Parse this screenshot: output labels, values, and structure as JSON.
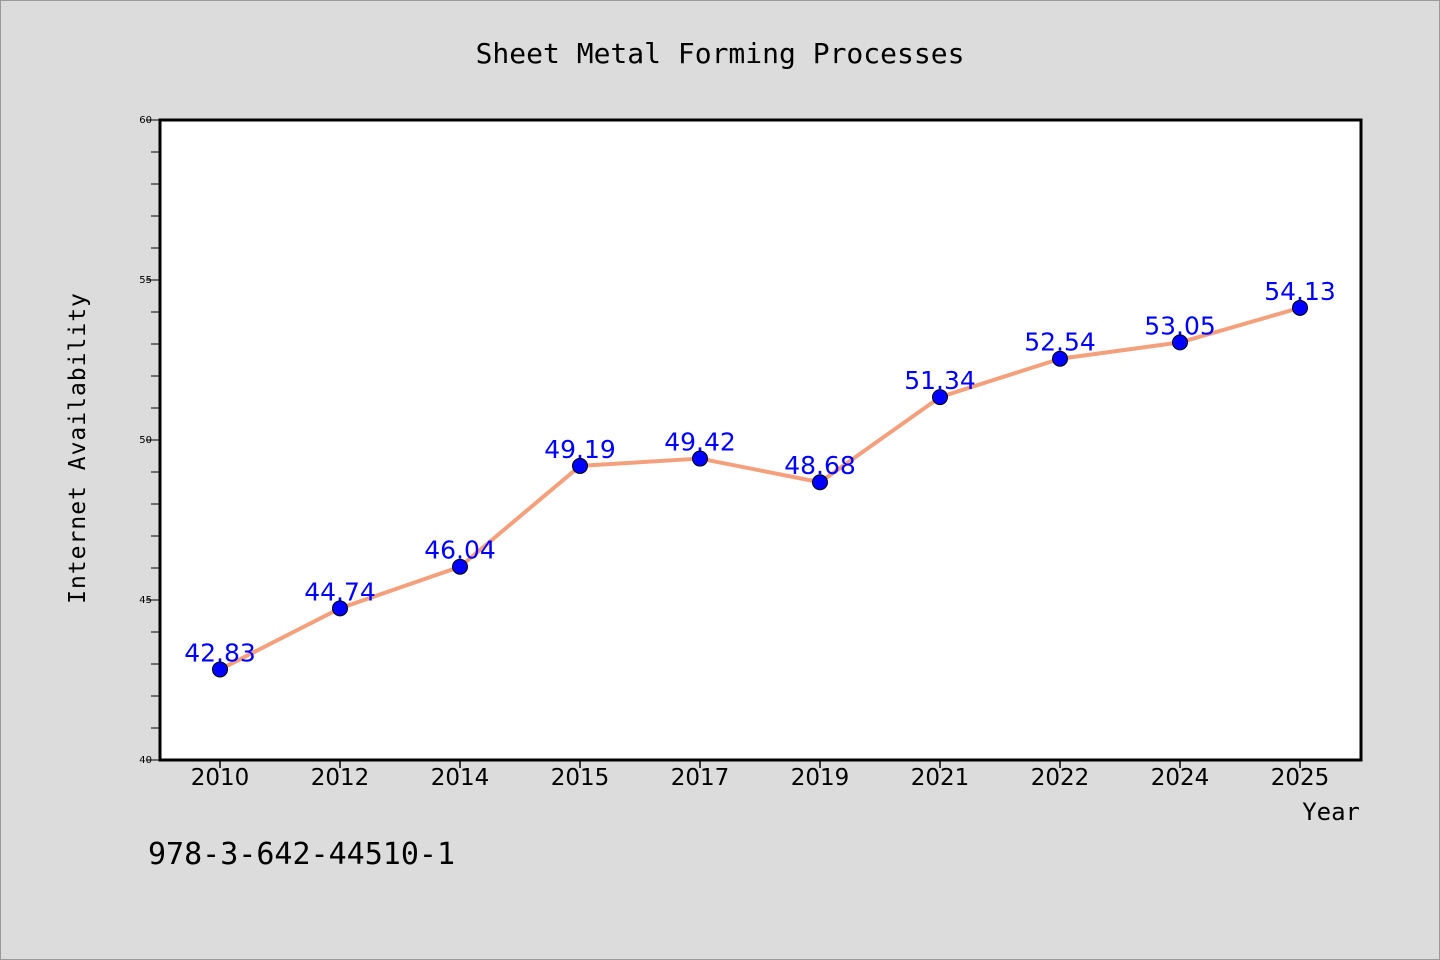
{
  "chart_data": {
    "type": "line",
    "title": "Sheet Metal Forming Processes",
    "xlabel": "Year",
    "ylabel": "Internet Availability",
    "categories": [
      "2010",
      "2012",
      "2014",
      "2015",
      "2017",
      "2019",
      "2021",
      "2022",
      "2024",
      "2025"
    ],
    "series": [
      {
        "values": [
          42.83,
          44.74,
          46.04,
          49.19,
          49.42,
          48.68,
          51.34,
          52.54,
          53.05,
          54.13
        ],
        "labels": [
          "42.83",
          "44.74",
          "46.04",
          "49.19",
          "49.42",
          "48.68",
          "51.34",
          "52.54",
          "53.05",
          "54.13"
        ],
        "line_color": "#f4a07c",
        "marker_color": "#0000ff"
      }
    ],
    "ylim": [
      40,
      60
    ],
    "yticks": [
      "40",
      "45",
      "50",
      "55",
      "60"
    ],
    "grid": false,
    "legend": "none"
  },
  "footer_text": "978-3-642-44510-1",
  "colors": {
    "background": "#dcdcdc",
    "plot_background": "#ffffff",
    "label_color": "#0000ff"
  }
}
